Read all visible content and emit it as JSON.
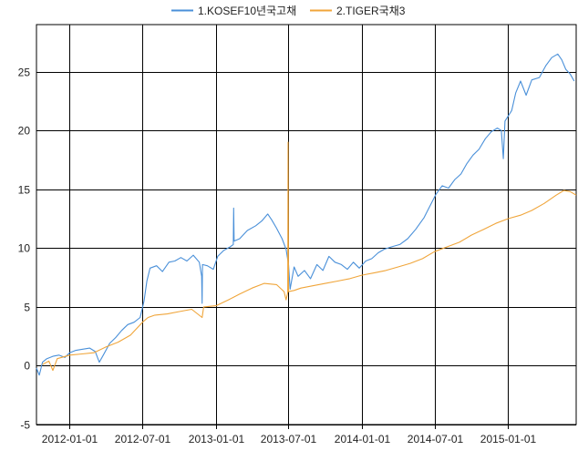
{
  "chart_data": {
    "type": "line",
    "title": "",
    "xlabel": "",
    "ylabel": "",
    "legend_position": "top-center",
    "grid": true,
    "xlim": [
      "2011-10-10",
      "2015-06-20"
    ],
    "ylim": [
      -5,
      29
    ],
    "x_ticks": [
      "2012-01-01",
      "2012-07-01",
      "2013-01-01",
      "2013-07-01",
      "2014-01-01",
      "2014-07-01",
      "2015-01-01"
    ],
    "y_ticks": [
      "-5",
      "0",
      "5",
      "10",
      "15",
      "20",
      "25"
    ],
    "series": [
      {
        "name": "1.KOSEF10년국고채",
        "color": "#4a90d9",
        "points": [
          [
            "2011-10-10",
            -0.2
          ],
          [
            "2011-10-17",
            -0.8
          ],
          [
            "2011-10-25",
            0.3
          ],
          [
            "2011-11-05",
            0.6
          ],
          [
            "2011-11-20",
            0.8
          ],
          [
            "2011-12-05",
            0.9
          ],
          [
            "2011-12-20",
            0.7
          ],
          [
            "2012-01-01",
            1.1
          ],
          [
            "2012-01-15",
            1.3
          ],
          [
            "2012-02-01",
            1.4
          ],
          [
            "2012-02-20",
            1.5
          ],
          [
            "2012-03-05",
            1.2
          ],
          [
            "2012-03-15",
            0.3
          ],
          [
            "2012-03-25",
            0.9
          ],
          [
            "2012-04-10",
            1.9
          ],
          [
            "2012-04-25",
            2.4
          ],
          [
            "2012-05-10",
            3.0
          ],
          [
            "2012-05-25",
            3.5
          ],
          [
            "2012-06-10",
            3.7
          ],
          [
            "2012-06-25",
            4.1
          ],
          [
            "2012-07-05",
            5.5
          ],
          [
            "2012-07-12",
            7.2
          ],
          [
            "2012-07-20",
            8.3
          ],
          [
            "2012-08-05",
            8.5
          ],
          [
            "2012-08-20",
            8.0
          ],
          [
            "2012-09-05",
            8.8
          ],
          [
            "2012-09-20",
            8.9
          ],
          [
            "2012-10-05",
            9.2
          ],
          [
            "2012-10-20",
            8.9
          ],
          [
            "2012-11-05",
            9.4
          ],
          [
            "2012-11-20",
            8.8
          ],
          [
            "2012-11-26",
            7.6
          ],
          [
            "2012-11-27",
            5.3
          ],
          [
            "2012-11-28",
            8.6
          ],
          [
            "2012-12-10",
            8.5
          ],
          [
            "2012-12-25",
            8.2
          ],
          [
            "2013-01-05",
            9.3
          ],
          [
            "2013-01-20",
            9.8
          ],
          [
            "2013-02-05",
            10.1
          ],
          [
            "2013-02-13",
            10.3
          ],
          [
            "2013-02-14",
            13.4
          ],
          [
            "2013-02-15",
            10.6
          ],
          [
            "2013-03-01",
            10.8
          ],
          [
            "2013-03-20",
            11.5
          ],
          [
            "2013-04-10",
            11.9
          ],
          [
            "2013-04-25",
            12.3
          ],
          [
            "2013-05-10",
            12.9
          ],
          [
            "2013-05-20",
            12.4
          ],
          [
            "2013-06-01",
            11.7
          ],
          [
            "2013-06-15",
            10.8
          ],
          [
            "2013-06-25",
            9.9
          ],
          [
            "2013-07-01",
            8.6
          ],
          [
            "2013-07-05",
            6.5
          ],
          [
            "2013-07-15",
            8.4
          ],
          [
            "2013-07-25",
            7.6
          ],
          [
            "2013-08-10",
            8.1
          ],
          [
            "2013-08-25",
            7.4
          ],
          [
            "2013-09-10",
            8.6
          ],
          [
            "2013-09-25",
            8.1
          ],
          [
            "2013-10-10",
            9.3
          ],
          [
            "2013-10-25",
            8.8
          ],
          [
            "2013-11-10",
            8.6
          ],
          [
            "2013-11-25",
            8.2
          ],
          [
            "2013-12-10",
            8.8
          ],
          [
            "2013-12-25",
            8.3
          ],
          [
            "2014-01-10",
            8.9
          ],
          [
            "2014-01-25",
            9.1
          ],
          [
            "2014-02-10",
            9.6
          ],
          [
            "2014-02-25",
            9.9
          ],
          [
            "2014-03-15",
            10.1
          ],
          [
            "2014-04-05",
            10.3
          ],
          [
            "2014-04-25",
            10.8
          ],
          [
            "2014-05-15",
            11.6
          ],
          [
            "2014-06-05",
            12.6
          ],
          [
            "2014-06-20",
            13.6
          ],
          [
            "2014-07-05",
            14.6
          ],
          [
            "2014-07-20",
            15.3
          ],
          [
            "2014-08-05",
            15.1
          ],
          [
            "2014-08-20",
            15.8
          ],
          [
            "2014-09-05",
            16.3
          ],
          [
            "2014-09-20",
            17.2
          ],
          [
            "2014-10-05",
            17.9
          ],
          [
            "2014-10-20",
            18.4
          ],
          [
            "2014-11-05",
            19.3
          ],
          [
            "2014-11-20",
            19.9
          ],
          [
            "2014-12-05",
            20.2
          ],
          [
            "2014-12-15",
            20.0
          ],
          [
            "2014-12-20",
            17.6
          ],
          [
            "2014-12-24",
            20.8
          ],
          [
            "2015-01-10",
            21.7
          ],
          [
            "2015-01-20",
            23.2
          ],
          [
            "2015-02-01",
            24.2
          ],
          [
            "2015-02-15",
            23.0
          ],
          [
            "2015-03-01",
            24.3
          ],
          [
            "2015-03-20",
            24.5
          ],
          [
            "2015-04-05",
            25.5
          ],
          [
            "2015-04-20",
            26.2
          ],
          [
            "2015-05-05",
            26.5
          ],
          [
            "2015-05-15",
            26.0
          ],
          [
            "2015-05-25",
            25.2
          ],
          [
            "2015-06-05",
            24.8
          ],
          [
            "2015-06-15",
            24.2
          ]
        ]
      },
      {
        "name": "2.TIGER국채3",
        "color": "#f0a53a",
        "points": [
          [
            "2011-10-25",
            0.1
          ],
          [
            "2011-11-10",
            0.4
          ],
          [
            "2011-11-20",
            -0.4
          ],
          [
            "2011-12-01",
            0.6
          ],
          [
            "2012-01-01",
            0.9
          ],
          [
            "2012-02-01",
            1.0
          ],
          [
            "2012-03-01",
            1.1
          ],
          [
            "2012-04-01",
            1.6
          ],
          [
            "2012-05-01",
            2.0
          ],
          [
            "2012-06-01",
            2.6
          ],
          [
            "2012-07-01",
            3.7
          ],
          [
            "2012-07-15",
            4.1
          ],
          [
            "2012-08-01",
            4.3
          ],
          [
            "2012-09-01",
            4.4
          ],
          [
            "2012-10-01",
            4.6
          ],
          [
            "2012-11-01",
            4.8
          ],
          [
            "2012-11-27",
            4.1
          ],
          [
            "2012-12-01",
            5.0
          ],
          [
            "2013-01-01",
            5.1
          ],
          [
            "2013-02-01",
            5.6
          ],
          [
            "2013-03-01",
            6.1
          ],
          [
            "2013-04-01",
            6.6
          ],
          [
            "2013-05-01",
            7.0
          ],
          [
            "2013-06-01",
            6.9
          ],
          [
            "2013-06-20",
            6.3
          ],
          [
            "2013-06-25",
            5.6
          ],
          [
            "2013-06-29",
            6.2
          ],
          [
            "2013-06-30",
            19.0
          ],
          [
            "2013-07-01",
            6.3
          ],
          [
            "2013-07-15",
            6.4
          ],
          [
            "2013-08-01",
            6.6
          ],
          [
            "2013-09-01",
            6.8
          ],
          [
            "2013-10-01",
            7.0
          ],
          [
            "2013-11-01",
            7.2
          ],
          [
            "2013-12-01",
            7.4
          ],
          [
            "2014-01-01",
            7.7
          ],
          [
            "2014-02-01",
            7.9
          ],
          [
            "2014-03-01",
            8.1
          ],
          [
            "2014-04-01",
            8.4
          ],
          [
            "2014-05-01",
            8.7
          ],
          [
            "2014-06-01",
            9.1
          ],
          [
            "2014-07-01",
            9.7
          ],
          [
            "2014-08-01",
            10.1
          ],
          [
            "2014-09-01",
            10.5
          ],
          [
            "2014-10-01",
            11.1
          ],
          [
            "2014-11-01",
            11.6
          ],
          [
            "2014-12-01",
            12.1
          ],
          [
            "2015-01-01",
            12.5
          ],
          [
            "2015-02-01",
            12.8
          ],
          [
            "2015-03-01",
            13.2
          ],
          [
            "2015-04-01",
            13.8
          ],
          [
            "2015-05-01",
            14.5
          ],
          [
            "2015-05-20",
            14.9
          ],
          [
            "2015-06-05",
            14.8
          ],
          [
            "2015-06-20",
            14.5
          ]
        ]
      }
    ]
  }
}
